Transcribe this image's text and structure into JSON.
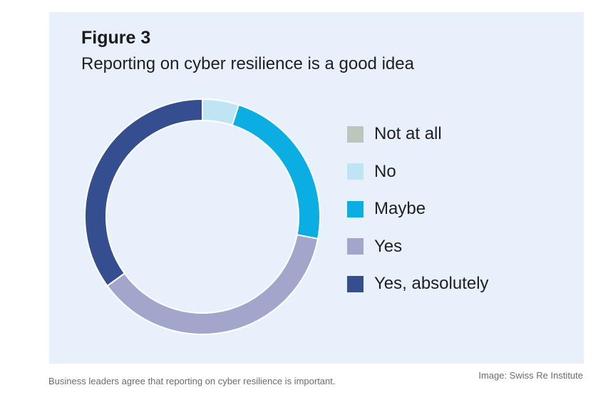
{
  "chart_data": {
    "type": "pie",
    "title": "Figure 3",
    "subtitle": "Reporting on cyber resilience is a good idea",
    "donut": true,
    "legend_position": "right",
    "series": [
      {
        "name": "Not at all",
        "value": 0,
        "color": "#bcc6bd"
      },
      {
        "name": "No",
        "value": 5,
        "color": "#bfe4f3"
      },
      {
        "name": "Maybe",
        "value": 23,
        "color": "#0aaee3"
      },
      {
        "name": "Yes",
        "value": 37,
        "color": "#a3a6cb"
      },
      {
        "name": "Yes, absolutely",
        "value": 35,
        "color": "#344e8f"
      }
    ]
  },
  "caption": "Business leaders agree that reporting on cyber resilience is important.",
  "credit": "Image: Swiss Re Institute"
}
